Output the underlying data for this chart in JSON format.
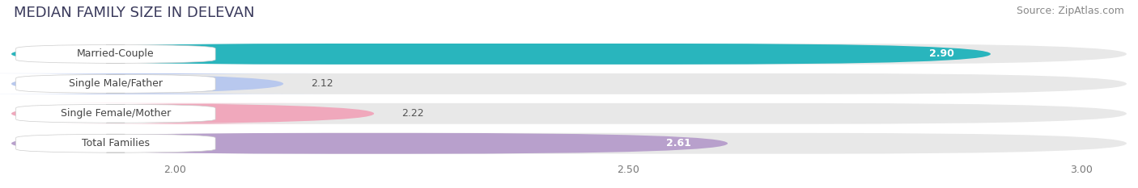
{
  "title": "MEDIAN FAMILY SIZE IN DELEVAN",
  "source": "Source: ZipAtlas.com",
  "categories": [
    "Married-Couple",
    "Single Male/Father",
    "Single Female/Mother",
    "Total Families"
  ],
  "values": [
    2.9,
    2.12,
    2.22,
    2.61
  ],
  "bar_colors": [
    "#29b5bd",
    "#b8c8ee",
    "#f0a8bc",
    "#b8a0cc"
  ],
  "value_inside": [
    true,
    false,
    false,
    true
  ],
  "xmin": 1.82,
  "xmax": 3.05,
  "xticks": [
    2.0,
    2.5,
    3.0
  ],
  "background_color": "#ffffff",
  "bar_bg_color": "#e8e8e8",
  "title_color": "#3a3a5c",
  "title_fontsize": 13,
  "source_fontsize": 9,
  "label_fontsize": 9,
  "value_fontsize": 9
}
